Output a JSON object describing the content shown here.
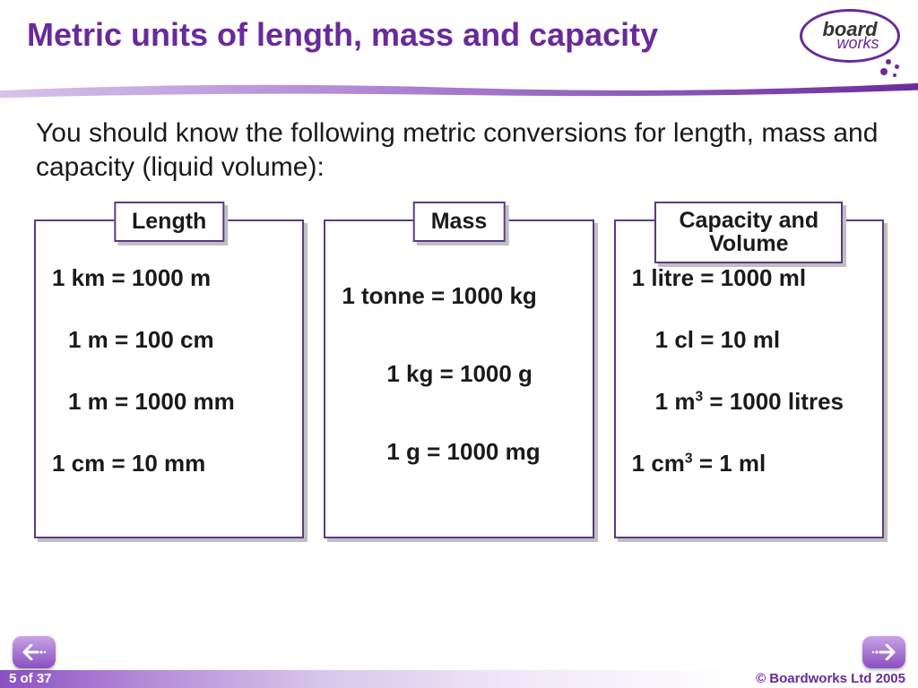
{
  "colors": {
    "title": "#6a2a9a",
    "body_text": "#1a1a1a",
    "panel_border": "#5a3a8a",
    "panel_shadow": "#bfbfbf",
    "footer_gradient_from": "#8a4fc2",
    "footer_gradient_to": "#ffffff",
    "background": "#ffffff"
  },
  "typography": {
    "title_size_pt": 28,
    "intro_size_pt": 22,
    "panel_label_size_pt": 19,
    "conversion_size_pt": 19,
    "footer_size_pt": 11
  },
  "header": {
    "title": "Metric units of length, mass and capacity",
    "logo": {
      "top": "board",
      "bottom": "works"
    }
  },
  "intro": "You should know the following metric conversions for length, mass and capacity (liquid volume):",
  "panels": [
    {
      "label": "Length",
      "label_lines": 1,
      "items": [
        {
          "html": "1 km = 1000 m",
          "indent": "i-0"
        },
        {
          "html": "1 m = 100 cm",
          "indent": "i-1"
        },
        {
          "html": "1 m = 1000 mm",
          "indent": "i-1"
        },
        {
          "html": "1 cm = 10 mm",
          "indent": "i-0"
        }
      ]
    },
    {
      "label": "Mass",
      "label_lines": 1,
      "items": [
        {
          "html": "1 tonne  =  1000 kg",
          "indent": "i-0"
        },
        {
          "html": "1 kg = 1000 g",
          "indent": "i-3"
        },
        {
          "html": "1 g = 1000 mg",
          "indent": "i-3"
        }
      ]
    },
    {
      "label": "Capacity and Volume",
      "label_lines": 2,
      "items": [
        {
          "html": "1 litre  = 1000 ml",
          "indent": "i-0"
        },
        {
          "html": "1 cl = 10 ml",
          "indent": "i-2"
        },
        {
          "html": "1 m<sup>3</sup> = 1000 litres",
          "indent": "i-2"
        },
        {
          "html": "1 cm<sup>3</sup> = 1 ml",
          "indent": "i-0"
        }
      ]
    }
  ],
  "footer": {
    "page": "5 of 37",
    "copyright": "© Boardworks Ltd 2005"
  },
  "nav": {
    "prev_icon": "arrow-left-icon",
    "next_icon": "arrow-right-icon"
  }
}
